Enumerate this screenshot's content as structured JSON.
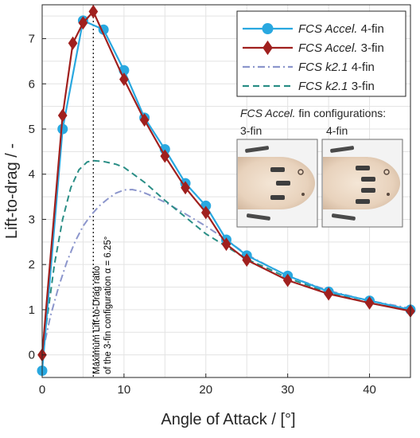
{
  "chart_data": {
    "type": "line",
    "xlabel": "Angle of Attack / [°]",
    "ylabel": "Lift-to-drag / -",
    "xlim": [
      0,
      45
    ],
    "ylim": [
      -0.5,
      7.75
    ],
    "xticks": [
      0,
      10,
      20,
      30,
      40
    ],
    "yticks": [
      0,
      1,
      2,
      3,
      4,
      5,
      6,
      7
    ],
    "grid": true,
    "legend_position": "top-right",
    "series": [
      {
        "name": "FCS Accel. 4-fin",
        "name_italic": "FCS Accel.",
        "name_rest": " 4-fin",
        "style": "solid-circle",
        "color": "#29a8e0",
        "x": [
          0,
          2.5,
          5,
          7.5,
          10,
          12.5,
          15,
          17.5,
          20,
          22.5,
          25,
          30,
          35,
          40,
          45
        ],
        "y": [
          -0.35,
          5.0,
          7.4,
          7.2,
          6.3,
          5.25,
          4.55,
          3.8,
          3.3,
          2.55,
          2.2,
          1.75,
          1.4,
          1.2,
          1.0
        ]
      },
      {
        "name": "FCS Accel. 3-fin",
        "name_italic": "FCS Accel.",
        "name_rest": " 3-fin",
        "style": "solid-diamond",
        "color": "#a0201e",
        "x": [
          0,
          2.5,
          3.75,
          5,
          6.25,
          10,
          12.5,
          15,
          17.5,
          20,
          22.5,
          25,
          30,
          35,
          40,
          45
        ],
        "y": [
          0.0,
          5.3,
          6.9,
          7.35,
          7.6,
          6.1,
          5.2,
          4.4,
          3.7,
          3.15,
          2.45,
          2.1,
          1.65,
          1.35,
          1.15,
          0.97
        ]
      },
      {
        "name": "FCS k2.1 4-fin",
        "name_italic": "FCS k2.1",
        "name_rest": " 4-fin",
        "style": "dashdot",
        "color": "#8c96cc",
        "x": [
          0,
          1,
          2,
          3,
          4,
          5,
          6,
          7,
          8,
          9,
          10,
          11,
          12,
          13,
          15,
          17.5,
          20,
          22.5,
          25,
          27.5,
          30,
          35,
          40,
          45
        ],
        "y": [
          0.0,
          0.85,
          1.5,
          2.05,
          2.5,
          2.85,
          3.1,
          3.3,
          3.45,
          3.58,
          3.65,
          3.66,
          3.62,
          3.55,
          3.38,
          3.12,
          2.85,
          2.55,
          2.22,
          1.98,
          1.75,
          1.42,
          1.2,
          1.03
        ]
      },
      {
        "name": "FCS k2.1 3-fin",
        "name_italic": "FCS k2.1",
        "name_rest": " 3-fin",
        "style": "dashed",
        "color": "#2a8e86",
        "x": [
          0,
          0.75,
          1.5,
          2.5,
          3.5,
          4.5,
          5.5,
          6.25,
          7.5,
          9,
          10,
          11,
          12.5,
          15,
          17.5,
          20,
          22.5,
          25,
          27.5,
          30,
          35,
          40,
          45
        ],
        "y": [
          0.0,
          1.0,
          2.0,
          3.0,
          3.7,
          4.1,
          4.27,
          4.3,
          4.28,
          4.22,
          4.15,
          4.02,
          3.82,
          3.42,
          3.05,
          2.68,
          2.4,
          2.12,
          1.92,
          1.7,
          1.38,
          1.15,
          0.98
        ]
      }
    ],
    "annotation": {
      "x": 6.25,
      "line1": "Maximum Lift-to-Drag ratio",
      "line2": "of the 3-fin configuration α = 6.25°"
    },
    "inset": {
      "title_italic": "FCS Accel.",
      "title_rest": " fin configurations:",
      "label_left": "3-fin",
      "label_right": "4-fin"
    }
  }
}
